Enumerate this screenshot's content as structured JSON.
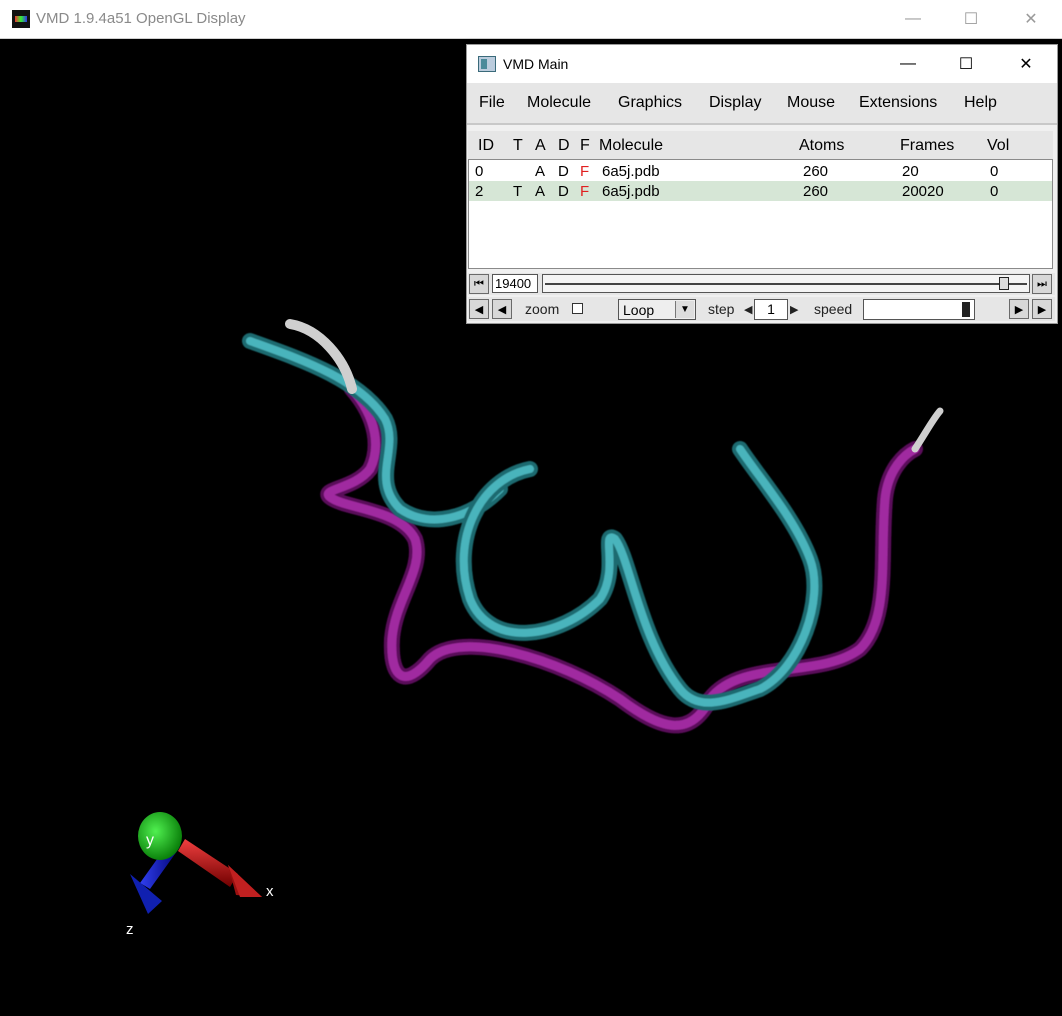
{
  "gl_window": {
    "title": "VMD 1.9.4a51 OpenGL Display",
    "minimize": "—",
    "maximize": "☐",
    "close": "✕"
  },
  "vmd_main": {
    "title": "VMD Main",
    "minimize": "—",
    "maximize": "☐",
    "close": "✕",
    "menu": [
      "File",
      "Molecule",
      "Graphics",
      "Display",
      "Mouse",
      "Extensions",
      "Help"
    ],
    "columns": [
      "ID",
      "T",
      "A",
      "D",
      "F",
      "Molecule",
      "Atoms",
      "Frames",
      "Vol"
    ],
    "molecules": [
      {
        "id": "0",
        "t": "",
        "a": "A",
        "d": "D",
        "f": "F",
        "name": "6a5j.pdb",
        "atoms": "260",
        "frames": "20",
        "vol": "0"
      },
      {
        "id": "2",
        "t": "T",
        "a": "A",
        "d": "D",
        "f": "F",
        "name": "6a5j.pdb",
        "atoms": "260",
        "frames": "20020",
        "vol": "0"
      }
    ],
    "frame": {
      "current": "19400"
    },
    "playback": {
      "zoom_label": "zoom",
      "mode": "Loop",
      "step_label": "step",
      "step": "1",
      "speed_label": "speed"
    }
  },
  "axes_labels": {
    "x": "x",
    "y": "y",
    "z": "z"
  },
  "colors": {
    "cyan_ribbon": "#3a9aa0",
    "magenta_ribbon": "#8a1a8a",
    "white_ribbon": "#d8d8d8",
    "axis_x": "#c01010",
    "axis_y": "#10c010",
    "axis_z": "#1020c0",
    "flag_f": "#e02020",
    "selected_row": "#d6e6d6"
  },
  "icons": {
    "gl_app": "vmd-logo-icon",
    "main_app": "window-icon",
    "first": "skip-first-icon",
    "last": "skip-last-icon",
    "rev_step": "step-back-icon",
    "rev_play": "play-reverse-icon",
    "fwd_play": "play-forward-icon",
    "fwd_step": "step-forward-icon"
  }
}
